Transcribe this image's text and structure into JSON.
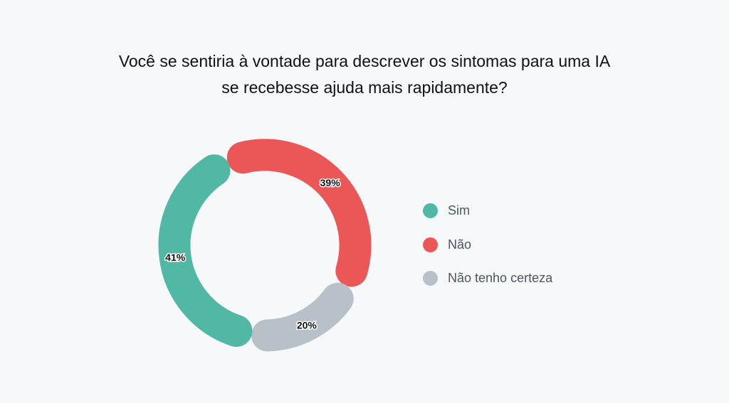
{
  "chart_data": {
    "type": "pie",
    "variant": "donut",
    "title": "Você se sentiria à vontade para descrever os sintomas para uma IA se recebesse ajuda mais rapidamente?",
    "title_lines": [
      "Você se sentiria à vontade para descrever os sintomas para uma IA",
      "se recebesse ajuda mais rapidamente?"
    ],
    "categories": [
      "Não",
      "Não tenho certeza",
      "Sim"
    ],
    "values": [
      39,
      20,
      41
    ],
    "labels": [
      "39%",
      "20%",
      "41%"
    ],
    "colors": [
      "#eb5757",
      "#b8c0c8",
      "#52b8a6"
    ],
    "legend_placement": "right",
    "legend": [
      {
        "label": "Sim",
        "color": "#52b8a6"
      },
      {
        "label": "Não",
        "color": "#eb5757"
      },
      {
        "label": "Não tenho certeza",
        "color": "#b8c0c8"
      }
    ]
  }
}
